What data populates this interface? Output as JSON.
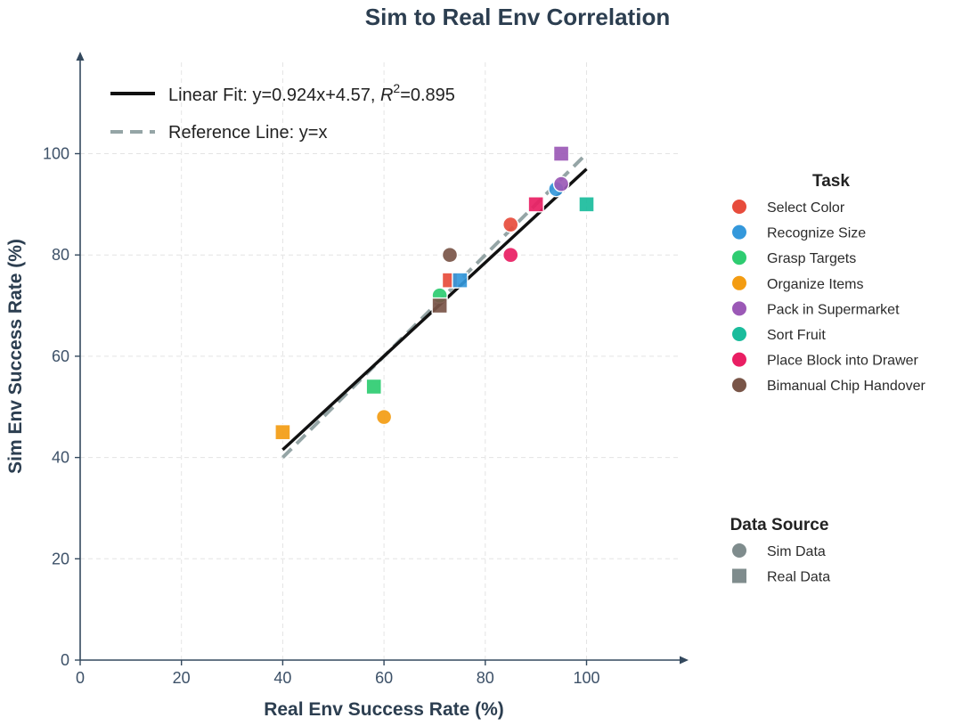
{
  "chart_data": {
    "type": "scatter",
    "title": "Sim to Real Env Correlation",
    "xlabel": "Real Env Success Rate (%)",
    "ylabel": "Sim Env Success Rate (%)",
    "xlim": [
      0,
      120
    ],
    "ylim": [
      0,
      120
    ],
    "xticks": [
      0,
      20,
      40,
      60,
      80,
      100
    ],
    "yticks": [
      0,
      20,
      40,
      60,
      80,
      100
    ],
    "grid": true,
    "fit_line": {
      "label_prefix": "Linear Fit: y=0.924x+4.57, ",
      "r_symbol": "R",
      "r_exp": "2",
      "r_value": "=0.895",
      "slope": 0.924,
      "intercept": 4.57,
      "x_range": [
        40,
        100
      ],
      "color": "#111111"
    },
    "reference_line": {
      "label": "Reference Line: y=x",
      "x_range": [
        40,
        100
      ],
      "color": "#95a5a6"
    },
    "task_legend": {
      "title": "Task",
      "placement": "right",
      "items": [
        {
          "label": "Select Color",
          "color": "#e74c3c"
        },
        {
          "label": "Recognize Size",
          "color": "#3498db"
        },
        {
          "label": "Grasp Targets",
          "color": "#2ecc71"
        },
        {
          "label": "Organize Items",
          "color": "#f39c12"
        },
        {
          "label": "Pack in Supermarket",
          "color": "#9b59b6"
        },
        {
          "label": "Sort Fruit",
          "color": "#1abc9c"
        },
        {
          "label": "Place Block into Drawer",
          "color": "#e91e63"
        },
        {
          "label": "Bimanual Chip Handover",
          "color": "#795548"
        }
      ]
    },
    "source_legend": {
      "title": "Data Source",
      "color": "#7f8c8d",
      "items": [
        {
          "label": "Sim Data",
          "marker": "circle"
        },
        {
          "label": "Real Data",
          "marker": "square"
        }
      ]
    },
    "points": [
      {
        "task": 0,
        "marker": "square",
        "x": 73,
        "y": 75
      },
      {
        "task": 0,
        "marker": "circle",
        "x": 85,
        "y": 86
      },
      {
        "task": 1,
        "marker": "square",
        "x": 75,
        "y": 75
      },
      {
        "task": 1,
        "marker": "circle",
        "x": 94,
        "y": 93
      },
      {
        "task": 2,
        "marker": "circle",
        "x": 71,
        "y": 72
      },
      {
        "task": 2,
        "marker": "square",
        "x": 58,
        "y": 54
      },
      {
        "task": 3,
        "marker": "square",
        "x": 40,
        "y": 45
      },
      {
        "task": 3,
        "marker": "circle",
        "x": 60,
        "y": 48
      },
      {
        "task": 4,
        "marker": "square",
        "x": 95,
        "y": 100
      },
      {
        "task": 4,
        "marker": "circle",
        "x": 95,
        "y": 94
      },
      {
        "task": 5,
        "marker": "square",
        "x": 100,
        "y": 90
      },
      {
        "task": 6,
        "marker": "square",
        "x": 90,
        "y": 90
      },
      {
        "task": 6,
        "marker": "circle",
        "x": 85,
        "y": 80
      },
      {
        "task": 7,
        "marker": "circle",
        "x": 73,
        "y": 80
      },
      {
        "task": 7,
        "marker": "square",
        "x": 71,
        "y": 70
      }
    ]
  }
}
